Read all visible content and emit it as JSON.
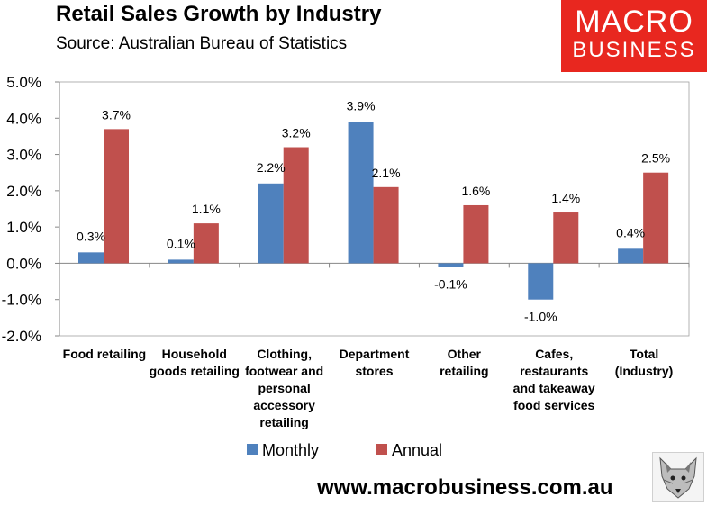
{
  "header": {
    "title": "Retail Sales Growth by Industry",
    "subtitle": "Source: Australian Bureau of Statistics"
  },
  "logo": {
    "line1": "MACRO",
    "line2": "BUSINESS"
  },
  "footer": {
    "url": "www.macrobusiness.com.au",
    "mascot_icon": "fox-icon"
  },
  "colors": {
    "monthly": "#4f81bd",
    "annual": "#c0504d"
  },
  "chart_data": {
    "type": "bar",
    "title": "Retail Sales Growth by Industry",
    "categories": [
      [
        "Food retailing"
      ],
      [
        "Household",
        "goods retailing"
      ],
      [
        "Clothing,",
        "footwear and",
        "personal",
        "accessory",
        "retailing"
      ],
      [
        "Department",
        "stores"
      ],
      [
        "Other",
        "retailing"
      ],
      [
        "Cafes,",
        "restaurants",
        "and takeaway",
        "food services"
      ],
      [
        "Total",
        "(Industry)"
      ]
    ],
    "series": [
      {
        "name": "Monthly",
        "values": [
          0.3,
          0.1,
          2.2,
          3.9,
          -0.1,
          -1.0,
          0.4
        ],
        "labels": [
          "0.3%",
          "0.1%",
          "2.2%",
          "3.9%",
          "-0.1%",
          "-1.0%",
          "0.4%"
        ]
      },
      {
        "name": "Annual",
        "values": [
          3.7,
          1.1,
          3.2,
          2.1,
          1.6,
          1.4,
          2.5
        ],
        "labels": [
          "3.7%",
          "1.1%",
          "3.2%",
          "2.1%",
          "1.6%",
          "1.4%",
          "2.5%"
        ]
      }
    ],
    "yticks": [
      5,
      4,
      3,
      2,
      1,
      0,
      -1,
      -2
    ],
    "ytick_labels": [
      "5.0%",
      "4.0%",
      "3.0%",
      "2.0%",
      "1.0%",
      "0.0%",
      "-1.0%",
      "-2.0%"
    ],
    "ylim": [
      -2,
      5
    ],
    "xlabel": "",
    "ylabel": "",
    "legend": "bottom",
    "grid": false
  }
}
